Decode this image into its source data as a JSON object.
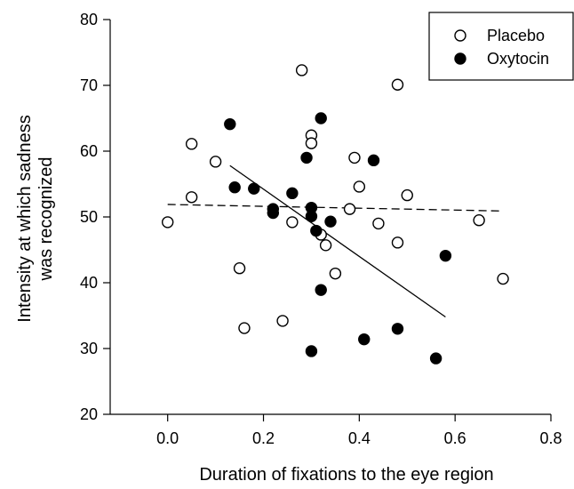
{
  "chart_data": {
    "type": "scatter",
    "title": "",
    "xlabel": "Duration of fixations to the eye region",
    "ylabel_lines": [
      "Intensity at which sadness",
      "was recognized"
    ],
    "xlim": [
      -0.12,
      0.8
    ],
    "ylim": [
      20,
      80
    ],
    "xticks": [
      0.0,
      0.2,
      0.4,
      0.6,
      0.8
    ],
    "xtick_labels": [
      "0.0",
      "0.2",
      "0.4",
      "0.6",
      "0.8"
    ],
    "yticks": [
      20,
      30,
      40,
      50,
      60,
      70,
      80
    ],
    "ytick_labels": [
      "20",
      "30",
      "40",
      "50",
      "60",
      "70",
      "80"
    ],
    "grid": false,
    "legend_position": "top-right",
    "series": [
      {
        "name": "Placebo",
        "marker": "open-circle",
        "color": "#000000",
        "points": [
          [
            0.0,
            49.2
          ],
          [
            0.05,
            53.0
          ],
          [
            0.05,
            61.1
          ],
          [
            0.1,
            58.4
          ],
          [
            0.15,
            42.2
          ],
          [
            0.16,
            33.1
          ],
          [
            0.24,
            34.2
          ],
          [
            0.26,
            49.2
          ],
          [
            0.28,
            72.3
          ],
          [
            0.3,
            62.4
          ],
          [
            0.3,
            61.2
          ],
          [
            0.32,
            47.3
          ],
          [
            0.33,
            45.7
          ],
          [
            0.35,
            41.4
          ],
          [
            0.38,
            51.2
          ],
          [
            0.39,
            59.0
          ],
          [
            0.4,
            54.6
          ],
          [
            0.44,
            49.0
          ],
          [
            0.48,
            70.1
          ],
          [
            0.48,
            46.1
          ],
          [
            0.5,
            53.3
          ],
          [
            0.65,
            49.5
          ],
          [
            0.7,
            40.6
          ]
        ],
        "fit_line": {
          "style": "dashed",
          "x": [
            0.0,
            0.7
          ],
          "y": [
            51.9,
            50.9
          ]
        }
      },
      {
        "name": "Oxytocin",
        "marker": "filled-circle",
        "color": "#000000",
        "points": [
          [
            0.13,
            64.1
          ],
          [
            0.14,
            54.5
          ],
          [
            0.18,
            54.3
          ],
          [
            0.22,
            51.2
          ],
          [
            0.22,
            50.6
          ],
          [
            0.26,
            53.6
          ],
          [
            0.29,
            59.0
          ],
          [
            0.3,
            51.4
          ],
          [
            0.3,
            50.1
          ],
          [
            0.31,
            47.9
          ],
          [
            0.32,
            65.0
          ],
          [
            0.32,
            38.9
          ],
          [
            0.34,
            49.3
          ],
          [
            0.3,
            29.6
          ],
          [
            0.41,
            31.4
          ],
          [
            0.43,
            58.6
          ],
          [
            0.48,
            33.0
          ],
          [
            0.56,
            28.5
          ],
          [
            0.58,
            44.1
          ]
        ],
        "fit_line": {
          "style": "solid",
          "x": [
            0.13,
            0.58
          ],
          "y": [
            57.8,
            34.8
          ]
        }
      }
    ]
  }
}
